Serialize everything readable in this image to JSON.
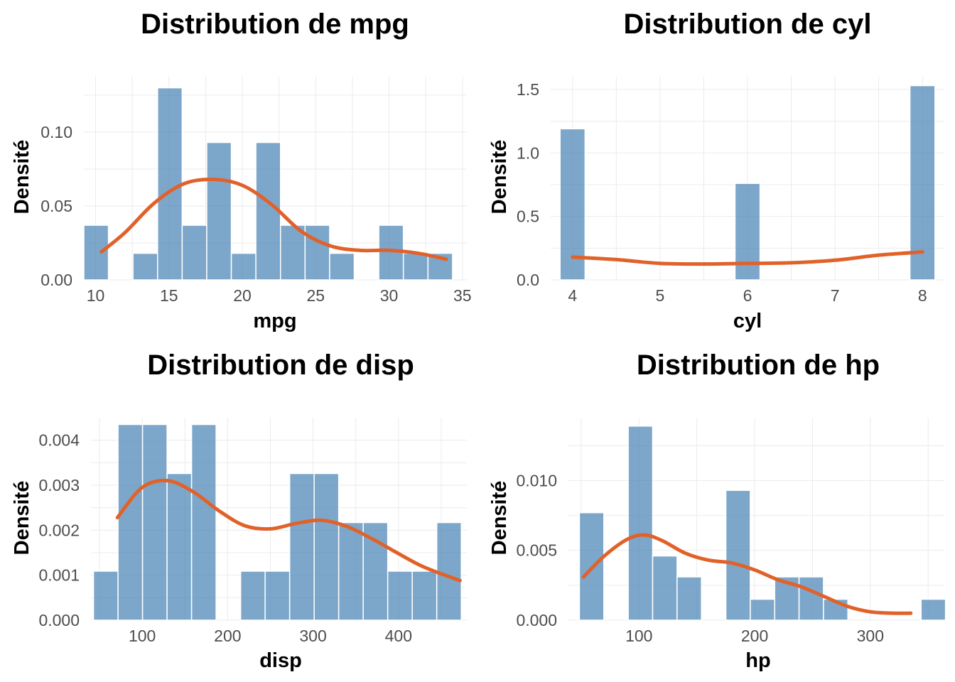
{
  "chart_data": [
    {
      "type": "bar",
      "title": "Distribution de mpg",
      "xlabel": "mpg",
      "ylabel": "Densité",
      "xlim": [
        9.2,
        35.3
      ],
      "ylim": [
        0,
        0.1375
      ],
      "xticks": [
        10,
        15,
        20,
        25,
        30,
        35
      ],
      "xtick_labels": [
        "10",
        "15",
        "20",
        "25",
        "30",
        "35"
      ],
      "yticks": [
        0,
        0.05,
        0.1
      ],
      "ytick_labels": [
        "0.00",
        "0.05",
        "0.10"
      ],
      "grid": true,
      "bins": [
        {
          "x0": 9.2,
          "x1": 10.875,
          "value": 0.037
        },
        {
          "x0": 10.875,
          "x1": 12.55,
          "value": 0
        },
        {
          "x0": 12.55,
          "x1": 14.225,
          "value": 0.018
        },
        {
          "x0": 14.225,
          "x1": 15.9,
          "value": 0.13
        },
        {
          "x0": 15.9,
          "x1": 17.575,
          "value": 0.037
        },
        {
          "x0": 17.575,
          "x1": 19.25,
          "value": 0.093
        },
        {
          "x0": 19.25,
          "x1": 20.925,
          "value": 0.018
        },
        {
          "x0": 20.925,
          "x1": 22.6,
          "value": 0.093
        },
        {
          "x0": 22.6,
          "x1": 24.275,
          "value": 0.037
        },
        {
          "x0": 24.275,
          "x1": 25.95,
          "value": 0.037
        },
        {
          "x0": 25.95,
          "x1": 27.625,
          "value": 0.018
        },
        {
          "x0": 27.625,
          "x1": 29.3,
          "value": 0
        },
        {
          "x0": 29.3,
          "x1": 30.975,
          "value": 0.037
        },
        {
          "x0": 30.975,
          "x1": 32.65,
          "value": 0.018
        },
        {
          "x0": 32.65,
          "x1": 34.325,
          "value": 0.018
        }
      ],
      "density": {
        "x": [
          10.4,
          12,
          14,
          16,
          18,
          20,
          22,
          24,
          26,
          28,
          30,
          32,
          33.9
        ],
        "y": [
          0.019,
          0.032,
          0.052,
          0.065,
          0.068,
          0.064,
          0.051,
          0.033,
          0.023,
          0.02,
          0.02,
          0.018,
          0.014
        ]
      }
    },
    {
      "type": "bar",
      "title": "Distribution de cyl",
      "xlabel": "cyl",
      "ylabel": "Densité",
      "xlim": [
        3.75,
        8.25
      ],
      "ylim": [
        0,
        1.6
      ],
      "xticks": [
        4,
        5,
        6,
        7,
        8
      ],
      "xtick_labels": [
        "4",
        "5",
        "6",
        "7",
        "8"
      ],
      "yticks": [
        0,
        0.5,
        1.0,
        1.5
      ],
      "ytick_labels": [
        "0.0",
        "0.5",
        "1.0",
        "1.5"
      ],
      "grid": true,
      "bins": [
        {
          "x0": 3.857,
          "x1": 4.143,
          "value": 1.19
        },
        {
          "x0": 4.143,
          "x1": 4.429,
          "value": 0
        },
        {
          "x0": 4.429,
          "x1": 4.714,
          "value": 0
        },
        {
          "x0": 4.714,
          "x1": 5.0,
          "value": 0
        },
        {
          "x0": 5.0,
          "x1": 5.286,
          "value": 0
        },
        {
          "x0": 5.286,
          "x1": 5.571,
          "value": 0
        },
        {
          "x0": 5.571,
          "x1": 5.857,
          "value": 0
        },
        {
          "x0": 5.857,
          "x1": 6.143,
          "value": 0.76
        },
        {
          "x0": 6.143,
          "x1": 6.429,
          "value": 0
        },
        {
          "x0": 6.429,
          "x1": 6.714,
          "value": 0
        },
        {
          "x0": 6.714,
          "x1": 7.0,
          "value": 0
        },
        {
          "x0": 7.0,
          "x1": 7.286,
          "value": 0
        },
        {
          "x0": 7.286,
          "x1": 7.571,
          "value": 0
        },
        {
          "x0": 7.571,
          "x1": 7.857,
          "value": 0
        },
        {
          "x0": 7.857,
          "x1": 8.143,
          "value": 1.53
        }
      ],
      "density": {
        "x": [
          4,
          4.5,
          5,
          5.5,
          6,
          6.5,
          7,
          7.5,
          8
        ],
        "y": [
          0.18,
          0.16,
          0.13,
          0.125,
          0.13,
          0.135,
          0.155,
          0.195,
          0.22
        ]
      }
    },
    {
      "type": "bar",
      "title": "Distribution de disp",
      "xlabel": "disp",
      "ylabel": "Densité",
      "xlim": [
        40,
        480
      ],
      "ylim": [
        0,
        0.0045
      ],
      "xticks": [
        100,
        200,
        300,
        400
      ],
      "xtick_labels": [
        "100",
        "200",
        "300",
        "400"
      ],
      "yticks": [
        0,
        0.001,
        0.002,
        0.003,
        0.004
      ],
      "ytick_labels": [
        "0.000",
        "0.001",
        "0.002",
        "0.003",
        "0.004"
      ],
      "grid": true,
      "bins": [
        {
          "x0": 43,
          "x1": 71.7,
          "value": 0.00109
        },
        {
          "x0": 71.7,
          "x1": 100.4,
          "value": 0.00435
        },
        {
          "x0": 100.4,
          "x1": 129.1,
          "value": 0.00435
        },
        {
          "x0": 129.1,
          "x1": 157.8,
          "value": 0.00326
        },
        {
          "x0": 157.8,
          "x1": 186.5,
          "value": 0.00435
        },
        {
          "x0": 186.5,
          "x1": 215.2,
          "value": 0
        },
        {
          "x0": 215.2,
          "x1": 243.9,
          "value": 0.00109
        },
        {
          "x0": 243.9,
          "x1": 272.6,
          "value": 0.00109
        },
        {
          "x0": 272.6,
          "x1": 301.3,
          "value": 0.00326
        },
        {
          "x0": 301.3,
          "x1": 330,
          "value": 0.00326
        },
        {
          "x0": 330,
          "x1": 358.7,
          "value": 0.00217
        },
        {
          "x0": 358.7,
          "x1": 387.4,
          "value": 0.00217
        },
        {
          "x0": 387.4,
          "x1": 416.1,
          "value": 0.00109
        },
        {
          "x0": 416.1,
          "x1": 444.8,
          "value": 0.00109
        },
        {
          "x0": 444.8,
          "x1": 473.5,
          "value": 0.00217
        }
      ],
      "density": {
        "x": [
          71,
          100,
          130,
          160,
          190,
          220,
          250,
          280,
          310,
          340,
          370,
          400,
          430,
          472
        ],
        "y": [
          0.00228,
          0.00295,
          0.0031,
          0.00285,
          0.00243,
          0.0021,
          0.00203,
          0.00215,
          0.00222,
          0.00208,
          0.0018,
          0.00148,
          0.00118,
          0.00088
        ]
      }
    },
    {
      "type": "bar",
      "title": "Distribution de hp",
      "xlabel": "hp",
      "ylabel": "Densité",
      "xlim": [
        39,
        364
      ],
      "ylim": [
        0,
        0.0145
      ],
      "xticks": [
        100,
        200,
        300
      ],
      "xtick_labels": [
        "100",
        "200",
        "300"
      ],
      "yticks": [
        0,
        0.005,
        0.01
      ],
      "ytick_labels": [
        "0.000",
        "0.005",
        "0.010"
      ],
      "grid": true,
      "bins": [
        {
          "x0": 48.5,
          "x1": 69.6,
          "value": 0.0077
        },
        {
          "x0": 69.6,
          "x1": 90.7,
          "value": 0
        },
        {
          "x0": 90.7,
          "x1": 111.8,
          "value": 0.0139
        },
        {
          "x0": 111.8,
          "x1": 132.9,
          "value": 0.0046
        },
        {
          "x0": 132.9,
          "x1": 154,
          "value": 0.0031
        },
        {
          "x0": 154,
          "x1": 175.1,
          "value": 0
        },
        {
          "x0": 175.1,
          "x1": 196.2,
          "value": 0.0093
        },
        {
          "x0": 196.2,
          "x1": 217.3,
          "value": 0.0015
        },
        {
          "x0": 217.3,
          "x1": 238.4,
          "value": 0.0031
        },
        {
          "x0": 238.4,
          "x1": 259.5,
          "value": 0.0031
        },
        {
          "x0": 259.5,
          "x1": 280.6,
          "value": 0.0015
        },
        {
          "x0": 280.6,
          "x1": 301.7,
          "value": 0
        },
        {
          "x0": 301.7,
          "x1": 322.8,
          "value": 0
        },
        {
          "x0": 322.8,
          "x1": 343.9,
          "value": 0
        },
        {
          "x0": 343.9,
          "x1": 365,
          "value": 0.0015
        }
      ],
      "density": {
        "x": [
          52,
          70,
          90,
          105,
          120,
          140,
          160,
          180,
          200,
          220,
          240,
          260,
          280,
          300,
          320,
          335
        ],
        "y": [
          0.0031,
          0.0046,
          0.0058,
          0.0061,
          0.0057,
          0.0048,
          0.0043,
          0.0041,
          0.0036,
          0.0029,
          0.0024,
          0.0017,
          0.001,
          0.0006,
          0.0005,
          0.0005
        ]
      }
    }
  ]
}
